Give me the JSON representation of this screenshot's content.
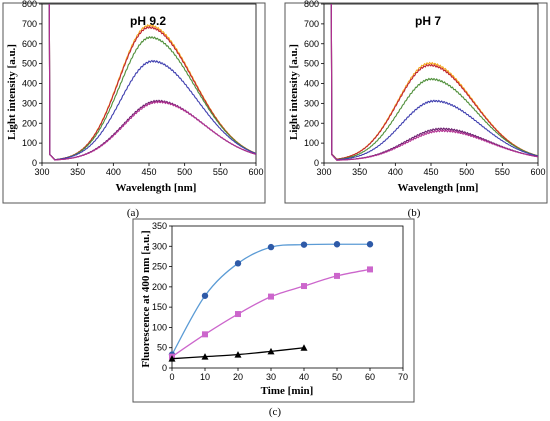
{
  "chart_data": [
    {
      "id": "a",
      "type": "line",
      "panel_label": "(a)",
      "title": "pH 9.2",
      "xlabel": "Wavelength [nm]",
      "ylabel": "Light intensity [a.u.]",
      "xlim": [
        300,
        600
      ],
      "ylim": [
        0,
        800
      ],
      "xticks": [
        300,
        350,
        400,
        450,
        500,
        550,
        600
      ],
      "yticks": [
        0,
        100,
        200,
        300,
        400,
        500,
        600,
        700,
        800
      ],
      "grid": false,
      "legend": "none",
      "series": [
        {
          "color": "#f4a81f",
          "peak": 680,
          "center": 450,
          "sl": 42,
          "sr": 62
        },
        {
          "color": "#c0232f",
          "peak": 670,
          "center": 450,
          "sl": 42,
          "sr": 62
        },
        {
          "color": "#4f8f3a",
          "peak": 620,
          "center": 452,
          "sl": 43,
          "sr": 62
        },
        {
          "color": "#3f3faf",
          "peak": 500,
          "center": 455,
          "sl": 45,
          "sr": 63
        },
        {
          "color": "#6a1e6e",
          "peak": 300,
          "center": 462,
          "sl": 48,
          "sr": 65
        },
        {
          "color": "#b03090",
          "peak": 295,
          "center": 463,
          "sl": 48,
          "sr": 65
        }
      ]
    },
    {
      "id": "b",
      "type": "line",
      "panel_label": "(b)",
      "title": "pH 7",
      "xlabel": "Wavelength [nm]",
      "ylabel": "Light intensity [a.u.]",
      "xlim": [
        300,
        600
      ],
      "ylim": [
        0,
        800
      ],
      "xticks": [
        300,
        350,
        400,
        450,
        500,
        550,
        600
      ],
      "yticks": [
        0,
        100,
        200,
        300,
        400,
        500,
        600,
        700,
        800
      ],
      "grid": false,
      "legend": "none",
      "series": [
        {
          "color": "#f4a81f",
          "peak": 490,
          "center": 448,
          "sl": 45,
          "sr": 62
        },
        {
          "color": "#c0232f",
          "peak": 480,
          "center": 448,
          "sl": 45,
          "sr": 62
        },
        {
          "color": "#4f8f3a",
          "peak": 410,
          "center": 450,
          "sl": 45,
          "sr": 63
        },
        {
          "color": "#3f3faf",
          "peak": 300,
          "center": 455,
          "sl": 47,
          "sr": 64
        },
        {
          "color": "#6a1e6e",
          "peak": 160,
          "center": 465,
          "sl": 50,
          "sr": 66
        },
        {
          "color": "#b03090",
          "peak": 150,
          "center": 466,
          "sl": 50,
          "sr": 66
        }
      ]
    },
    {
      "id": "c",
      "type": "line",
      "panel_label": "(c)",
      "title": "",
      "xlabel": "Time [min]",
      "ylabel": "Fluorescence at 400 nm [a.u.]",
      "xlim": [
        0,
        70
      ],
      "ylim": [
        0,
        350
      ],
      "xticks": [
        0,
        10,
        20,
        30,
        40,
        50,
        60,
        70
      ],
      "yticks": [
        0,
        50,
        100,
        150,
        200,
        250,
        300,
        350
      ],
      "grid": false,
      "legend": "none",
      "series": [
        {
          "color": "#2e5aa8",
          "line": "#5b9bd5",
          "marker": "circle",
          "x": [
            0,
            10,
            20,
            30,
            40,
            50,
            60
          ],
          "y": [
            33,
            178,
            258,
            298,
            304,
            305,
            305
          ]
        },
        {
          "color": "#cc66cc",
          "line": "#cc66cc",
          "marker": "square",
          "x": [
            0,
            10,
            20,
            30,
            40,
            50,
            60
          ],
          "y": [
            28,
            83,
            133,
            176,
            202,
            227,
            243
          ]
        },
        {
          "color": "#000000",
          "line": "#000000",
          "marker": "triangle",
          "x": [
            0,
            10,
            20,
            30,
            40
          ],
          "y": [
            23,
            28,
            33,
            41,
            50
          ]
        }
      ]
    }
  ]
}
